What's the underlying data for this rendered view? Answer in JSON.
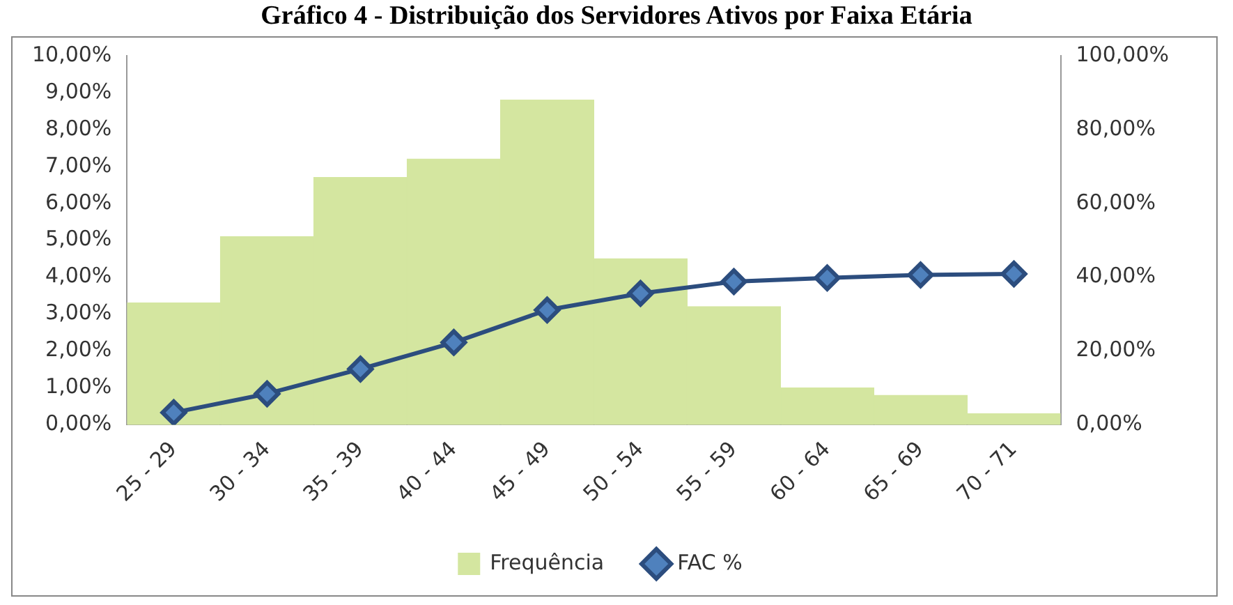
{
  "chart_data": {
    "type": "bar",
    "title": "Gráfico 4 - Distribuição dos Servidores Ativos por Faixa Etária",
    "categories": [
      "25 - 29",
      "30 - 34",
      "35 - 39",
      "40 - 44",
      "45 - 49",
      "50 - 54",
      "55 - 59",
      "60 - 64",
      "65 - 69",
      "70 - 71"
    ],
    "series": [
      {
        "name": "Frequência",
        "color": "#d4e6a0",
        "values": [
          3.3,
          5.1,
          6.7,
          7.2,
          8.8,
          4.5,
          3.2,
          1.0,
          0.8,
          0.3
        ]
      },
      {
        "name": "FAC %",
        "type": "line",
        "axis": "y2",
        "color": "#4f81bd",
        "marker": "diamond",
        "values": [
          3.3,
          8.4,
          15.1,
          22.3,
          31.1,
          35.6,
          38.8,
          39.8,
          40.6,
          40.9
        ]
      }
    ],
    "ylim": [
      0,
      10
    ],
    "yticks": [
      {
        "value": 0,
        "label": "0,00%"
      },
      {
        "value": 1,
        "label": "1,00%"
      },
      {
        "value": 2,
        "label": "2,00%"
      },
      {
        "value": 3,
        "label": "3,00%"
      },
      {
        "value": 4,
        "label": "4,00%"
      },
      {
        "value": 5,
        "label": "5,00%"
      },
      {
        "value": 6,
        "label": "6,00%"
      },
      {
        "value": 7,
        "label": "7,00%"
      },
      {
        "value": 8,
        "label": "8,00%"
      },
      {
        "value": 9,
        "label": "9,00%"
      },
      {
        "value": 10,
        "label": "10,00%"
      }
    ],
    "y2lim": [
      0,
      100
    ],
    "y2ticks": [
      {
        "value": 0,
        "label": "0,00%"
      },
      {
        "value": 20,
        "label": "20,00%"
      },
      {
        "value": 40,
        "label": "40,00%"
      },
      {
        "value": 60,
        "label": "60,00%"
      },
      {
        "value": 80,
        "label": "80,00%"
      },
      {
        "value": 100,
        "label": "100,00%"
      }
    ],
    "grid": false,
    "legend": "bottom"
  }
}
